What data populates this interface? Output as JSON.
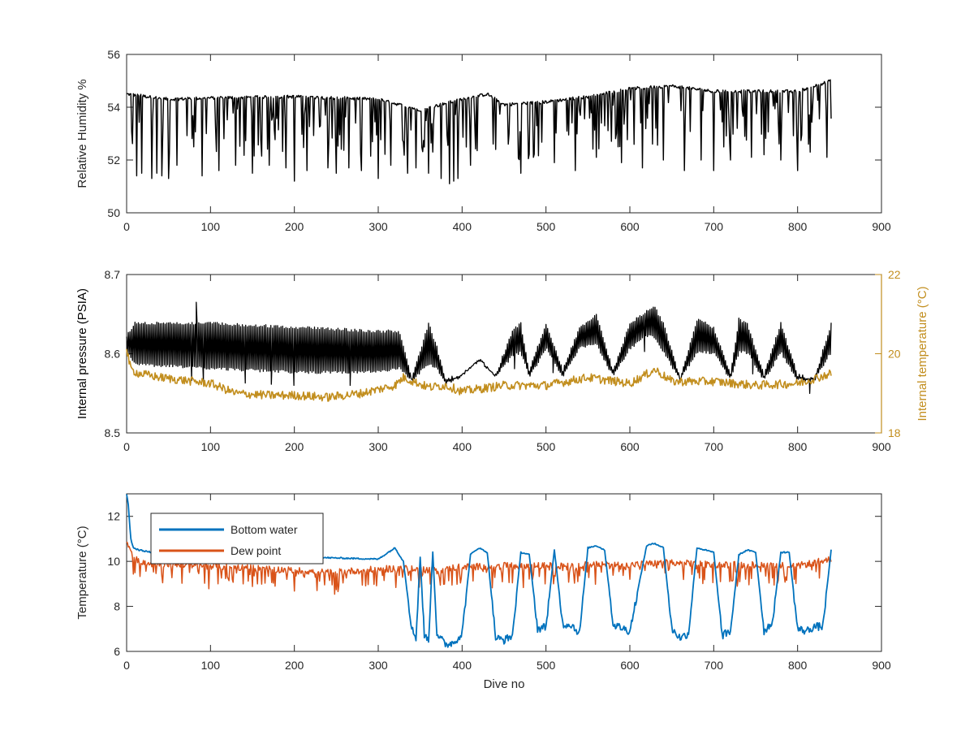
{
  "colors": {
    "black": "#000000",
    "axis_text": "#262626",
    "internal_temp": "#C28E1E",
    "bottom_water": "#0072BD",
    "dew_point": "#D95319",
    "legend_border": "#262626",
    "background": "#ffffff"
  },
  "chart_data": [
    {
      "type": "line",
      "xlabel": "",
      "ylabel": "Relative Humidity %",
      "xlim": [
        0,
        900
      ],
      "ylim": [
        50,
        56
      ],
      "xticks": [
        0,
        100,
        200,
        300,
        400,
        500,
        600,
        700,
        800,
        900
      ],
      "yticks": [
        50,
        52,
        54,
        56
      ],
      "grid": false,
      "series": [
        {
          "color": "#000000",
          "baseline": {
            "x": [
              0,
              50,
              100,
              200,
              300,
              350,
              400,
              430,
              450,
              500,
              550,
              600,
              650,
              700,
              750,
              800,
              840
            ],
            "y": [
              54.5,
              54.3,
              54.35,
              54.4,
              54.3,
              53.9,
              54.3,
              54.5,
              54.1,
              54.2,
              54.4,
              54.7,
              54.8,
              54.6,
              54.6,
              54.6,
              55.0
            ]
          },
          "dips": {
            "x": [
              12,
              18,
              30,
              36,
              42,
              50,
              60,
              90,
              110,
              130,
              150,
              170,
              190,
              200,
              215,
              240,
              250,
              265,
              280,
              300,
              315,
              335,
              345,
              360,
              375,
              385,
              390,
              395,
              410,
              440,
              455,
              470,
              485,
              510,
              535,
              560,
              590,
              615,
              640,
              665,
              685,
              700,
              720,
              745,
              760,
              780,
              800,
              815,
              835
            ],
            "y": [
              51.4,
              51.5,
              51.3,
              51.5,
              51.4,
              51.3,
              51.8,
              51.4,
              51.6,
              51.8,
              51.5,
              51.8,
              51.7,
              51.2,
              51.6,
              51.7,
              51.5,
              51.7,
              51.6,
              51.3,
              51.8,
              51.5,
              51.7,
              51.5,
              51.3,
              51.1,
              51.2,
              51.3,
              51.8,
              52.4,
              52.6,
              51.5,
              52.1,
              51.9,
              51.6,
              52.1,
              51.9,
              51.7,
              52.0,
              51.6,
              52.0,
              51.6,
              52.0,
              52.1,
              52.2,
              52.0,
              51.6,
              52.3,
              52.1
            ]
          }
        }
      ]
    },
    {
      "type": "line",
      "xlabel": "",
      "ylabel": "Internal pressure (PSIA)",
      "ylabel_right": "Internal temperature (°C)",
      "xlim": [
        0,
        900
      ],
      "ylim": [
        8.5,
        8.7
      ],
      "ylim_right": [
        18,
        22
      ],
      "xticks": [
        0,
        100,
        200,
        300,
        400,
        500,
        600,
        700,
        800,
        900
      ],
      "yticks": [
        8.5,
        8.6,
        8.7
      ],
      "yticks_right": [
        18,
        20,
        22
      ],
      "grid": false,
      "series": [
        {
          "axis": "left",
          "color": "#000000",
          "upper": {
            "x": [
              0,
              10,
              100,
              200,
              300,
              325,
              340,
              360,
              370,
              380,
              400,
              420,
              440,
              460,
              470,
              480,
              500,
              520,
              540,
              560,
              580,
              600,
              620,
              630,
              640,
              660,
              680,
              700,
              720,
              730,
              740,
              760,
              780,
              800,
              820,
              840
            ],
            "y": [
              8.625,
              8.64,
              8.64,
              8.635,
              8.63,
              8.63,
              8.57,
              8.64,
              8.61,
              8.57,
              8.575,
              8.595,
              8.575,
              8.63,
              8.64,
              8.58,
              8.64,
              8.58,
              8.635,
              8.65,
              8.58,
              8.64,
              8.655,
              8.66,
              8.64,
              8.57,
              8.645,
              8.635,
              8.575,
              8.645,
              8.64,
              8.575,
              8.64,
              8.575,
              8.57,
              8.64
            ]
          },
          "lower": {
            "x": [
              0,
              10,
              100,
              200,
              300,
              325,
              340,
              360,
              370,
              380,
              400,
              420,
              440,
              460,
              470,
              480,
              500,
              520,
              540,
              560,
              580,
              600,
              620,
              630,
              640,
              660,
              680,
              700,
              720,
              730,
              740,
              760,
              780,
              800,
              820,
              840
            ],
            "y": [
              8.6,
              8.585,
              8.58,
              8.575,
              8.575,
              8.58,
              8.565,
              8.585,
              8.58,
              8.56,
              8.57,
              8.59,
              8.57,
              8.595,
              8.6,
              8.568,
              8.605,
              8.57,
              8.605,
              8.61,
              8.57,
              8.605,
              8.62,
              8.62,
              8.6,
              8.565,
              8.6,
              8.6,
              8.565,
              8.6,
              8.6,
              8.565,
              8.6,
              8.565,
              8.565,
              8.6
            ]
          }
        },
        {
          "axis": "right",
          "color": "#C28E1E",
          "x": [
            0,
            5,
            15,
            40,
            80,
            100,
            130,
            170,
            200,
            240,
            280,
            320,
            330,
            360,
            380,
            400,
            450,
            500,
            550,
            600,
            630,
            650,
            700,
            750,
            800,
            840
          ],
          "y": [
            20.1,
            19.6,
            19.5,
            19.4,
            19.3,
            19.25,
            19.0,
            18.95,
            18.95,
            18.9,
            19.0,
            19.2,
            19.4,
            19.15,
            19.2,
            19.05,
            19.2,
            19.2,
            19.4,
            19.25,
            19.6,
            19.3,
            19.3,
            19.2,
            19.25,
            19.5
          ]
        }
      ]
    },
    {
      "type": "line",
      "xlabel": "Dive no",
      "ylabel": "Temperature (°C)",
      "xlim": [
        0,
        900
      ],
      "ylim": [
        6,
        13
      ],
      "xticks": [
        0,
        100,
        200,
        300,
        400,
        500,
        600,
        700,
        800,
        900
      ],
      "yticks": [
        6,
        8,
        10,
        12
      ],
      "grid": false,
      "legend": "top-left",
      "series": [
        {
          "name": "Bottom water",
          "color": "#0072BD",
          "x": [
            0,
            2,
            5,
            8,
            15,
            30,
            60,
            100,
            200,
            300,
            320,
            330,
            340,
            345,
            350,
            355,
            360,
            365,
            370,
            380,
            390,
            400,
            410,
            420,
            430,
            440,
            450,
            460,
            470,
            480,
            490,
            500,
            510,
            520,
            530,
            540,
            550,
            560,
            570,
            580,
            600,
            620,
            630,
            640,
            650,
            660,
            670,
            680,
            690,
            700,
            710,
            720,
            730,
            740,
            750,
            760,
            770,
            780,
            790,
            800,
            810,
            820,
            830,
            840
          ],
          "y": [
            13.0,
            12.5,
            11.0,
            10.6,
            10.5,
            10.4,
            10.35,
            10.3,
            10.2,
            10.1,
            10.6,
            10.0,
            7.0,
            6.6,
            10.2,
            6.7,
            6.5,
            10.4,
            6.8,
            6.3,
            6.4,
            6.8,
            10.3,
            10.6,
            10.4,
            6.6,
            6.5,
            6.7,
            10.4,
            10.3,
            7.0,
            7.1,
            10.5,
            7.2,
            7.2,
            6.8,
            10.6,
            10.7,
            10.5,
            7.2,
            6.9,
            10.7,
            10.8,
            10.6,
            7.0,
            6.6,
            6.8,
            10.6,
            10.5,
            10.4,
            6.7,
            6.9,
            10.3,
            10.5,
            10.4,
            6.9,
            7.3,
            10.4,
            10.4,
            7.0,
            6.9,
            7.1,
            7.1,
            10.5
          ]
        },
        {
          "name": "Dew point",
          "color": "#D95319",
          "x": [
            0,
            5,
            15,
            50,
            100,
            150,
            200,
            240,
            300,
            330,
            350,
            380,
            400,
            450,
            500,
            550,
            600,
            650,
            700,
            750,
            800,
            840
          ],
          "y": [
            10.9,
            10.4,
            10.0,
            9.9,
            9.8,
            9.7,
            9.6,
            9.5,
            9.65,
            9.7,
            9.6,
            9.7,
            9.75,
            9.8,
            9.8,
            9.85,
            9.85,
            9.95,
            9.85,
            9.85,
            9.8,
            10.1
          ]
        }
      ]
    }
  ]
}
